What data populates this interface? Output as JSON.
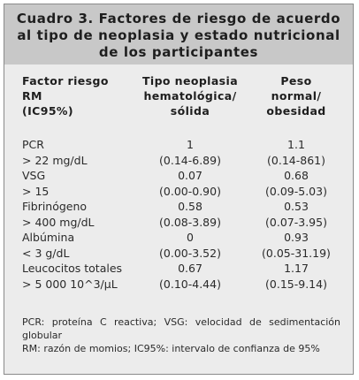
{
  "title": {
    "line1": "Cuadro 3. Factores de riesgo de acuerdo",
    "line2": "al tipo de neoplasia y estado nutricional",
    "line3": "de los participantes"
  },
  "columns": {
    "factor": [
      "Factor riesgo",
      "RM",
      "(IC95%)"
    ],
    "neoplasia": [
      "Tipo neoplasia",
      "hematológica/",
      "sólida"
    ],
    "peso": [
      "Peso",
      "normal/",
      "obesidad"
    ]
  },
  "rows": [
    {
      "factor": "PCR",
      "neoplasia": "1",
      "peso": "1.1"
    },
    {
      "factor": "> 22 mg/dL",
      "neoplasia": "(0.14-6.89)",
      "peso": "(0.14-861)"
    },
    {
      "factor": "VSG",
      "neoplasia": "0.07",
      "peso": "0.68"
    },
    {
      "factor": "> 15",
      "neoplasia": "(0.00-0.90)",
      "peso": "(0.09-5.03)"
    },
    {
      "factor": "Fibrinógeno",
      "neoplasia": "0.58",
      "peso": "0.53"
    },
    {
      "factor": "> 400 mg/dL",
      "neoplasia": "(0.08-3.89)",
      "peso": "(0.07-3.95)"
    },
    {
      "factor": "Albúmina",
      "neoplasia": "0",
      "peso": "0.93"
    },
    {
      "factor": "< 3 g/dL",
      "neoplasia": "(0.00-3.52)",
      "peso": "(0.05-31.19)"
    },
    {
      "factor": "Leucocitos totales",
      "neoplasia": "0.67",
      "peso": "1.17"
    },
    {
      "factor": "> 5 000 10^3/µL",
      "neoplasia": "(0.10-4.44)",
      "peso": "(0.15-9.14)"
    }
  ],
  "notes": {
    "line1": "PCR: proteína C reactiva; VSG: velocidad de sedimentación globular",
    "line2": "RM: razón de momios; IC95%: intervalo de confianza de 95%"
  }
}
